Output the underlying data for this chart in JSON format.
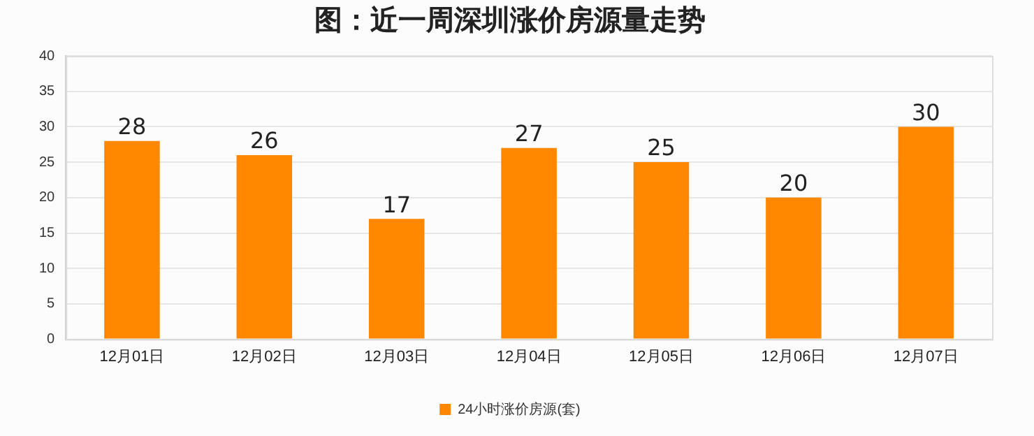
{
  "chart_data": {
    "type": "bar",
    "title": "图：近一周深圳涨价房源量走势",
    "categories": [
      "12月01日",
      "12月02日",
      "12月03日",
      "12月04日",
      "12月05日",
      "12月06日",
      "12月07日"
    ],
    "series": [
      {
        "name": "24小时涨价房源(套)",
        "color": "#ff8800",
        "values": [
          28,
          26,
          17,
          27,
          25,
          20,
          30
        ]
      }
    ],
    "ylim": [
      0,
      40
    ],
    "yticks": [
      0,
      5,
      10,
      15,
      20,
      25,
      30,
      35,
      40
    ],
    "grid": "y",
    "legend": "bottom",
    "data_labels": true
  }
}
